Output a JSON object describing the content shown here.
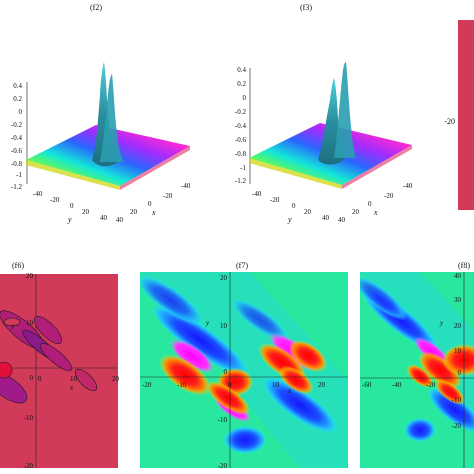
{
  "panels": {
    "f2": {
      "label": "(f2)",
      "z_ticks": [
        "0.4",
        "0.2",
        "0",
        "-0.2",
        "-0.4",
        "-0.6",
        "-0.8",
        "-1",
        "-1.2"
      ],
      "y_ticks": [
        "-40",
        "-20",
        "0",
        "20",
        "40"
      ],
      "x_ticks": [
        "-40",
        "-20",
        "0",
        "20",
        "40"
      ],
      "xlabel": "x",
      "ylabel": "y"
    },
    "f3": {
      "label": "(f3)",
      "z_ticks": [
        "0.4",
        "0.2",
        "0",
        "-0.2",
        "-0.4",
        "-0.6",
        "-0.8",
        "-1",
        "-1.2"
      ],
      "y_ticks": [
        "-40",
        "-20",
        "0",
        "20",
        "40"
      ],
      "x_ticks": [
        "-40",
        "-20",
        "0",
        "20",
        "40"
      ],
      "xlabel": "x",
      "ylabel": "y"
    },
    "f4_partial": {
      "tick": "-20",
      "color": "#d23a5a"
    },
    "f6": {
      "label": "(f6)",
      "y_ticks": [
        "20",
        "10",
        "0",
        "-10",
        "-20"
      ],
      "x_ticks": [
        "0",
        "10",
        "20"
      ],
      "xlabel": "x",
      "ylabel": "y",
      "bg": "#d23a5a"
    },
    "f7": {
      "label": "(f7)",
      "y_ticks": [
        "20",
        "10",
        "0",
        "-10",
        "-20"
      ],
      "x_ticks": [
        "-20",
        "-10",
        "0",
        "10",
        "20"
      ],
      "xlabel": "x",
      "ylabel": "y"
    },
    "f8": {
      "label": "(f8)",
      "y_ticks": [
        "40",
        "30",
        "20",
        "10",
        "0",
        "-10",
        "-20"
      ],
      "x_ticks": [
        "-60",
        "-40",
        "-20"
      ],
      "ylabel": "y"
    }
  },
  "colors": {
    "magenta_bg": "#d23a5a",
    "field_bg": "#28e8a0",
    "peak": "#2a8f9f"
  }
}
